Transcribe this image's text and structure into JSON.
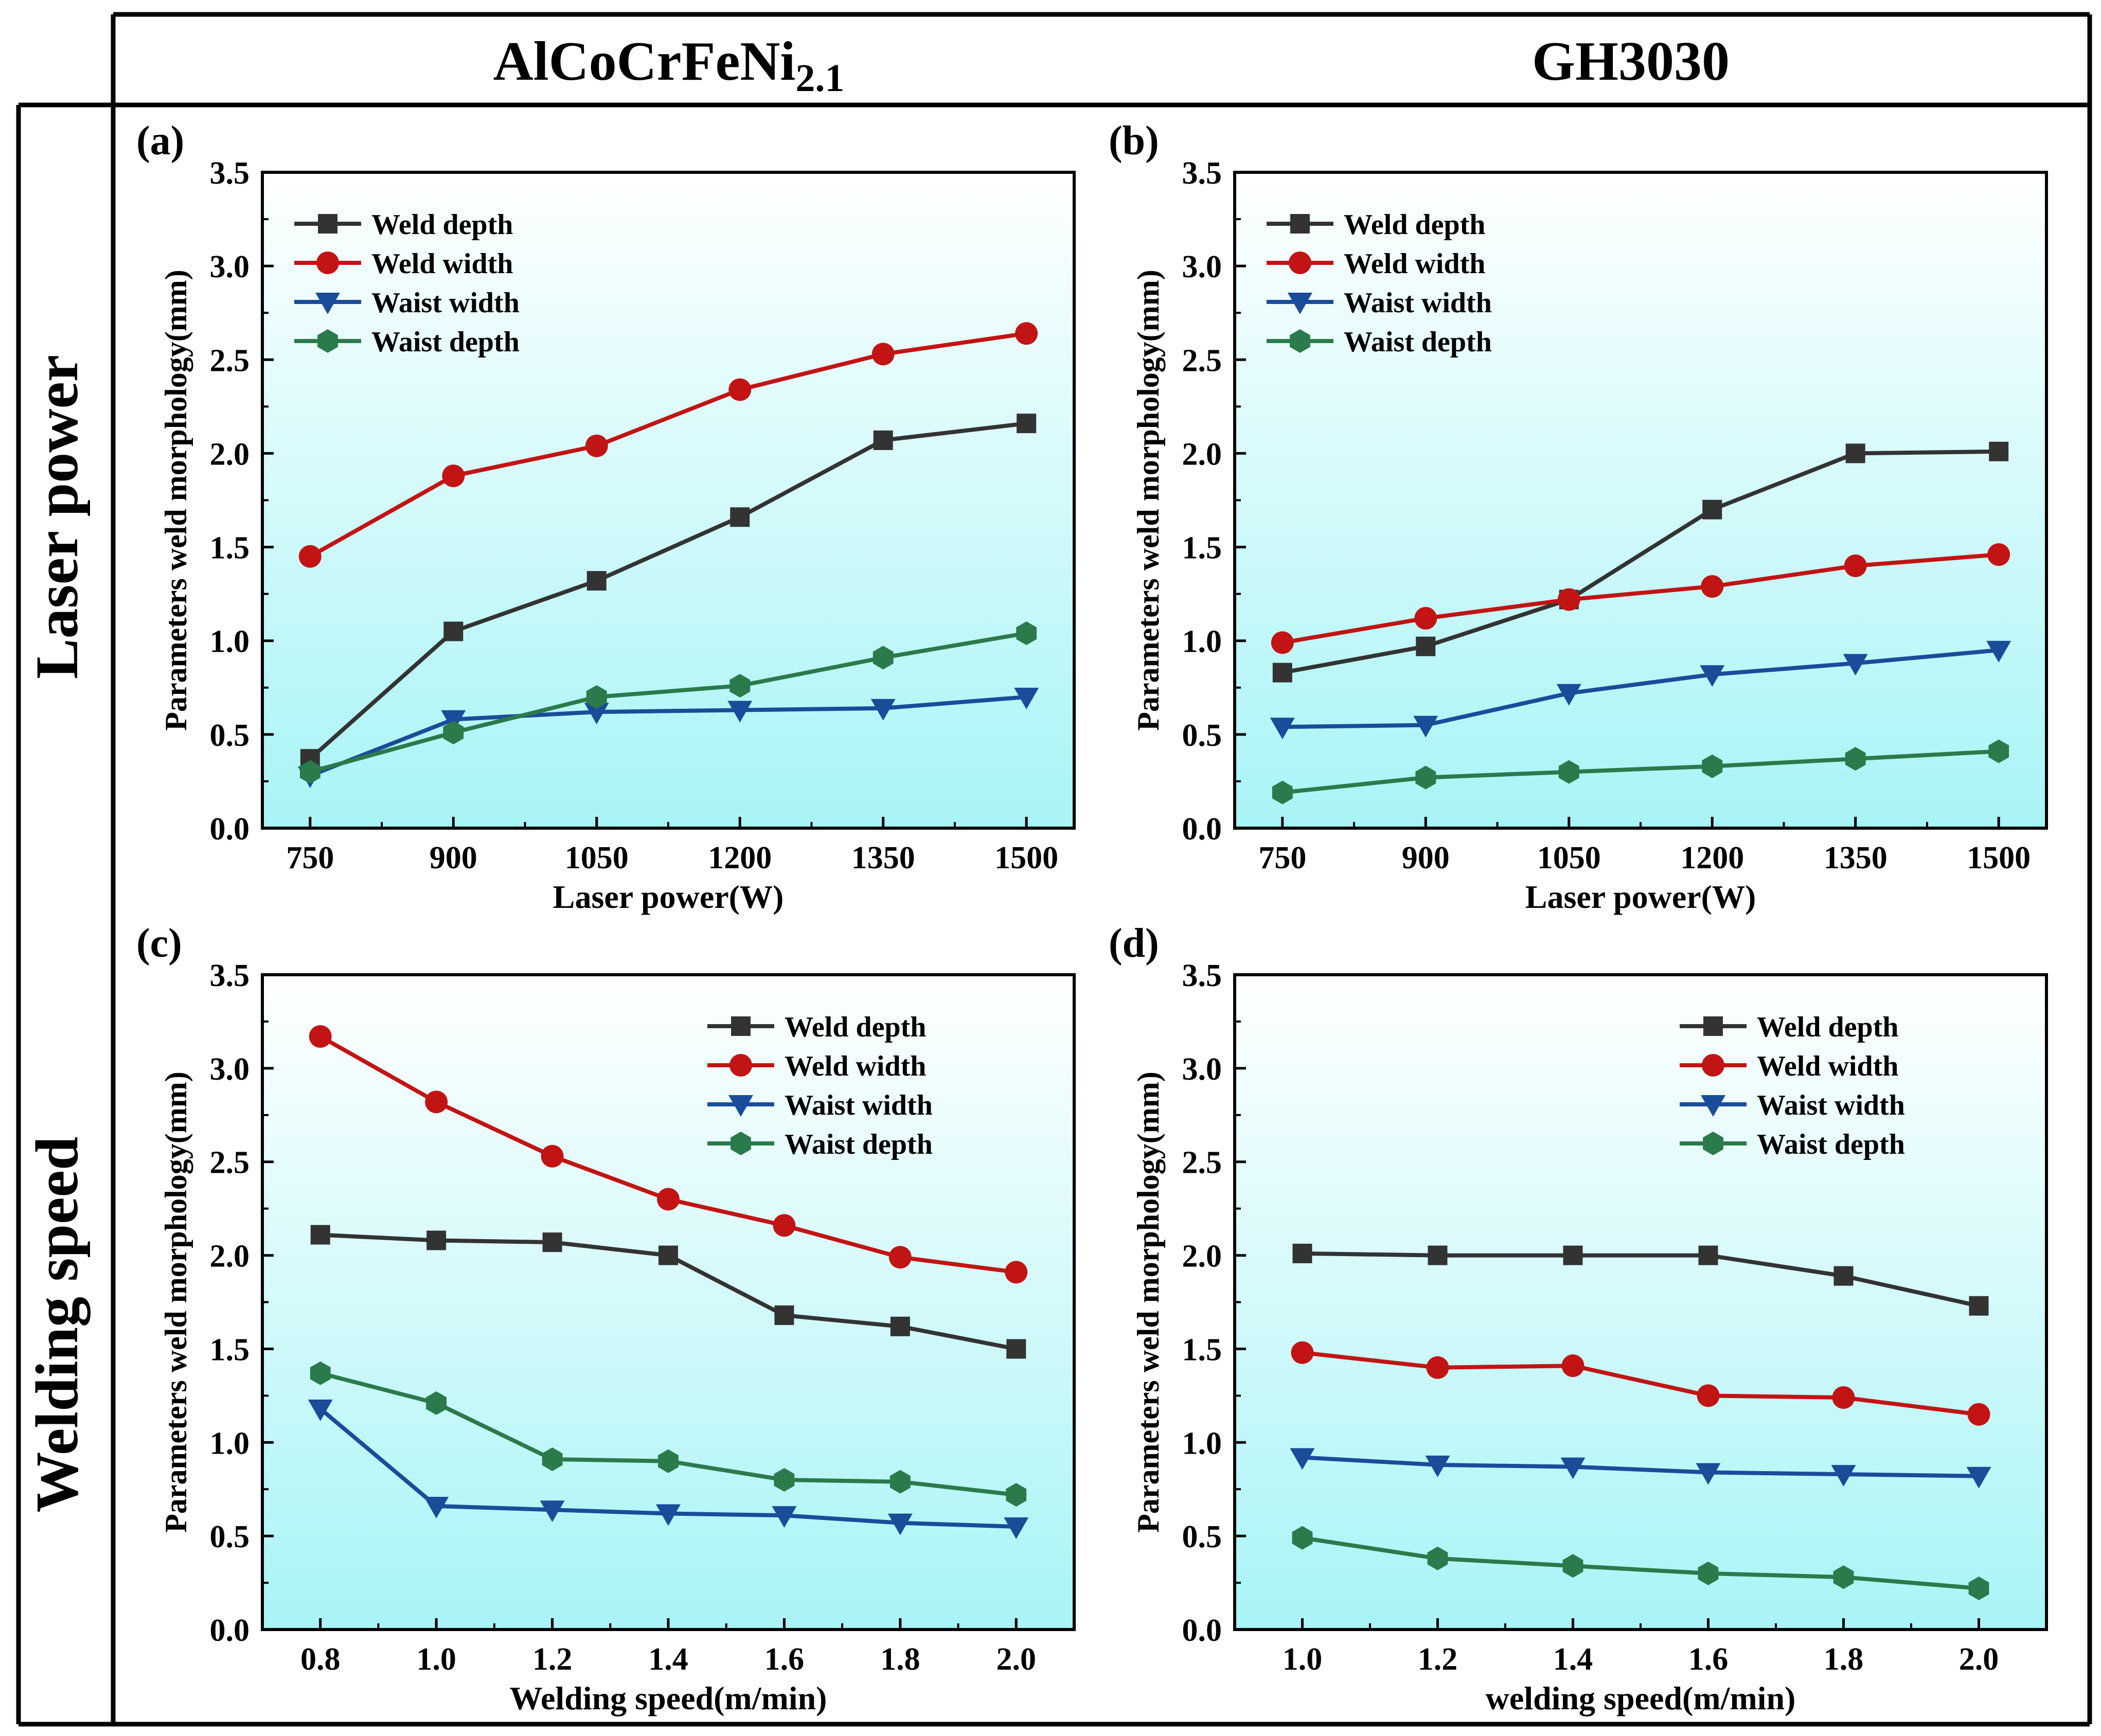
{
  "header": {
    "col1_title_main": "AlCoCrFeNi",
    "col1_title_sub": "2.1",
    "col2_title": "GH3030",
    "row1_label": "Laser power",
    "row2_label": "Welding speed"
  },
  "colors": {
    "weld_depth": "#333333",
    "weld_width": "#c21414",
    "waist_width": "#1a4c9a",
    "waist_depth": "#2b7a4b",
    "bg_top": "#ffffff",
    "bg_bottom": "#a8f4f6"
  },
  "chart_data": [
    {
      "type": "line",
      "panel_label": "(a)",
      "xlabel": "Laser power(W)",
      "ylabel": "Parameters weld morphology(mm)",
      "x": [
        750,
        900,
        1050,
        1200,
        1350,
        1500
      ],
      "x_tick_labels": [
        "750",
        "900",
        "1050",
        "1200",
        "1350",
        "1500"
      ],
      "xlim": [
        700,
        1550
      ],
      "ylim": [
        0,
        3.5
      ],
      "y_ticks": [
        "0.0",
        "0.5",
        "1.0",
        "1.5",
        "2.0",
        "2.5",
        "3.0",
        "3.5"
      ],
      "legend_position": "top-left",
      "series": [
        {
          "name": "Weld depth",
          "marker": "square",
          "values": [
            0.37,
            1.05,
            1.32,
            1.66,
            2.07,
            2.16
          ]
        },
        {
          "name": "Weld width",
          "marker": "circle",
          "values": [
            1.45,
            1.88,
            2.04,
            2.34,
            2.53,
            2.64
          ]
        },
        {
          "name": "Waist width",
          "marker": "triangle-down",
          "values": [
            0.28,
            0.58,
            0.62,
            0.63,
            0.64,
            0.7
          ]
        },
        {
          "name": "Waist depth",
          "marker": "hexagon",
          "values": [
            0.3,
            0.51,
            0.7,
            0.76,
            0.91,
            1.04
          ]
        }
      ]
    },
    {
      "type": "line",
      "panel_label": "(b)",
      "xlabel": "Laser power(W)",
      "ylabel": "Parameters weld morphology(mm)",
      "x": [
        750,
        900,
        1050,
        1200,
        1350,
        1500
      ],
      "x_tick_labels": [
        "750",
        "900",
        "1050",
        "1200",
        "1350",
        "1500"
      ],
      "xlim": [
        700,
        1550
      ],
      "ylim": [
        0,
        3.5
      ],
      "y_ticks": [
        "0.0",
        "0.5",
        "1.0",
        "1.5",
        "2.0",
        "2.5",
        "3.0",
        "3.5"
      ],
      "legend_position": "top-left",
      "series": [
        {
          "name": "Weld depth",
          "marker": "square",
          "values": [
            0.83,
            0.97,
            1.22,
            1.7,
            2.0,
            2.01
          ]
        },
        {
          "name": "Weld width",
          "marker": "circle",
          "values": [
            0.99,
            1.12,
            1.22,
            1.29,
            1.4,
            1.46
          ]
        },
        {
          "name": "Waist width",
          "marker": "triangle-down",
          "values": [
            0.54,
            0.55,
            0.72,
            0.82,
            0.88,
            0.95
          ]
        },
        {
          "name": "Waist depth",
          "marker": "hexagon",
          "values": [
            0.19,
            0.27,
            0.3,
            0.33,
            0.37,
            0.41
          ]
        }
      ]
    },
    {
      "type": "line",
      "panel_label": "(c)",
      "xlabel": "Welding speed(m/min)",
      "ylabel": "Parameters weld morphology(mm)",
      "x": [
        0.8,
        1.0,
        1.2,
        1.4,
        1.6,
        1.8,
        2.0
      ],
      "x_tick_labels": [
        "0.8",
        "1.0",
        "1.2",
        "1.4",
        "1.6",
        "1.8",
        "2.0"
      ],
      "xlim": [
        0.7,
        2.1
      ],
      "ylim": [
        0,
        3.5
      ],
      "y_ticks": [
        "0.0",
        "0.5",
        "1.0",
        "1.5",
        "2.0",
        "2.5",
        "3.0",
        "3.5"
      ],
      "legend_position": "top-right",
      "series": [
        {
          "name": "Weld depth",
          "marker": "square",
          "values": [
            2.11,
            2.08,
            2.07,
            2.0,
            1.68,
            1.62,
            1.5
          ]
        },
        {
          "name": "Weld width",
          "marker": "circle",
          "values": [
            3.17,
            2.82,
            2.53,
            2.3,
            2.16,
            1.99,
            1.91
          ]
        },
        {
          "name": "Waist width",
          "marker": "triangle-down",
          "values": [
            1.18,
            0.66,
            0.64,
            0.62,
            0.61,
            0.57,
            0.55
          ]
        },
        {
          "name": "Waist depth",
          "marker": "hexagon",
          "values": [
            1.37,
            1.21,
            0.91,
            0.9,
            0.8,
            0.79,
            0.72
          ]
        }
      ]
    },
    {
      "type": "line",
      "panel_label": "(d)",
      "xlabel": "welding speed(m/min)",
      "ylabel": "Parameters weld morphology(mm)",
      "x": [
        1.0,
        1.2,
        1.4,
        1.6,
        1.8,
        2.0
      ],
      "x_tick_labels": [
        "1.0",
        "1.2",
        "1.4",
        "1.6",
        "1.8",
        "2.0"
      ],
      "xlim": [
        0.9,
        2.1
      ],
      "ylim": [
        0,
        3.5
      ],
      "y_ticks": [
        "0.0",
        "0.5",
        "1.0",
        "1.5",
        "2.0",
        "2.5",
        "3.0",
        "3.5"
      ],
      "legend_position": "top-right",
      "series": [
        {
          "name": "Weld depth",
          "marker": "square",
          "values": [
            2.01,
            2.0,
            2.0,
            2.0,
            1.89,
            1.73
          ]
        },
        {
          "name": "Weld width",
          "marker": "circle",
          "values": [
            1.48,
            1.4,
            1.41,
            1.25,
            1.24,
            1.15
          ]
        },
        {
          "name": "Waist width",
          "marker": "triangle-down",
          "values": [
            0.92,
            0.88,
            0.87,
            0.84,
            0.83,
            0.82
          ]
        },
        {
          "name": "Waist depth",
          "marker": "hexagon",
          "values": [
            0.49,
            0.38,
            0.34,
            0.3,
            0.28,
            0.22
          ]
        }
      ]
    }
  ]
}
